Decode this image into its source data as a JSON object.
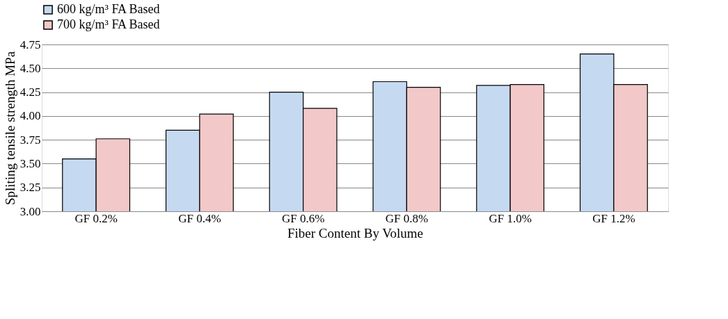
{
  "chart_data": {
    "type": "bar",
    "xlabel": "Fiber Content By Volume",
    "ylabel": "Spliting tensile strength MPa",
    "categories": [
      "GF 0.2%",
      "GF 0.4%",
      "GF 0.6%",
      "GF 0.8%",
      "GF 1.0%",
      "GF 1.2%"
    ],
    "series": [
      {
        "name": "600 kg/m³ FA Based",
        "color": "#c5d9f1",
        "values": [
          3.55,
          3.85,
          4.25,
          4.36,
          4.32,
          4.65
        ]
      },
      {
        "name": "700 kg/m³ FA Based",
        "color": "#f2c9c8",
        "values": [
          3.76,
          4.02,
          4.08,
          4.3,
          4.33,
          4.33
        ]
      }
    ],
    "ylim": [
      3.0,
      4.75
    ],
    "yticks": [
      {
        "value": 3.0,
        "label": "3.00"
      },
      {
        "value": 3.25,
        "label": "3.25"
      },
      {
        "value": 3.5,
        "label": "3.50"
      },
      {
        "value": 3.75,
        "label": "3.75"
      },
      {
        "value": 4.0,
        "label": "4.00"
      },
      {
        "value": 4.25,
        "label": "4.25"
      },
      {
        "value": 4.5,
        "label": "4.50"
      },
      {
        "value": 4.75,
        "label": "4.75"
      }
    ],
    "grid": "y",
    "legend": "top"
  }
}
